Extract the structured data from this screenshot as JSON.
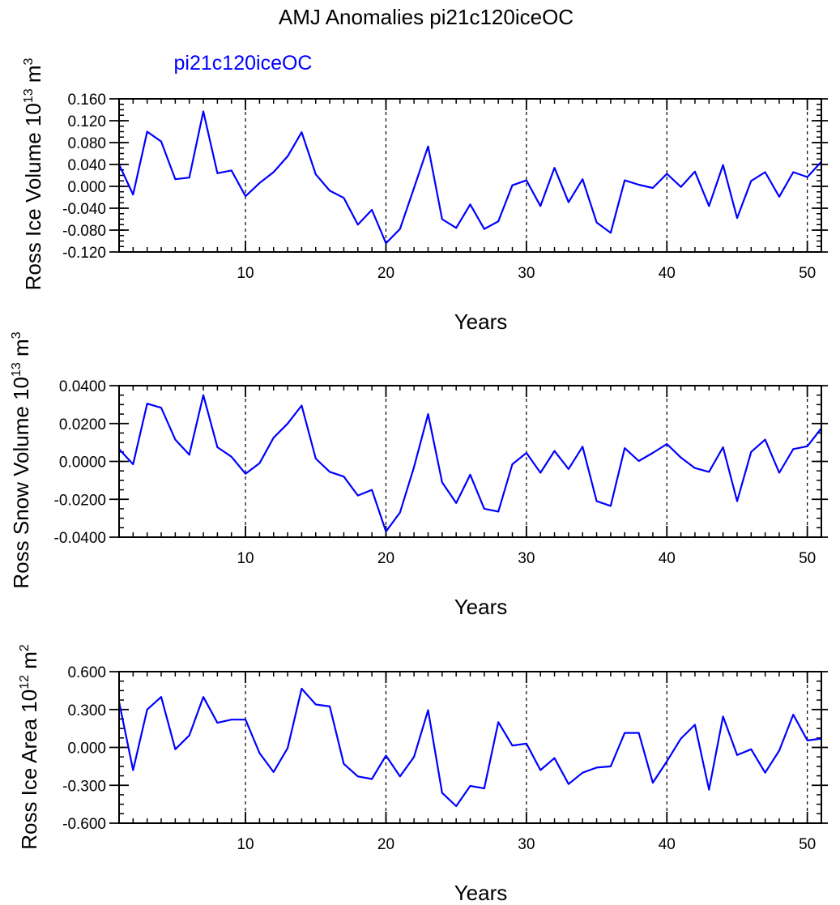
{
  "figure": {
    "title": "AMJ Anomalies pi21c120iceOC",
    "series_label": "pi21c120iceOC",
    "line_color": "#0000ff"
  },
  "chart_data": [
    {
      "type": "line",
      "name": "ross-ice-volume",
      "xlabel": "Years",
      "ylabel": {
        "text": "Ross Ice Volume 10",
        "exp": "13",
        "unit": " m",
        "unit_exp": "3"
      },
      "xlim": [
        1,
        51
      ],
      "ylim": [
        -0.12,
        0.16
      ],
      "xticks": [
        10,
        20,
        30,
        40,
        50
      ],
      "xtick_labels": [
        "10",
        "20",
        "30",
        "40",
        "50"
      ],
      "yticks": [
        -0.12,
        -0.08,
        -0.04,
        0.0,
        0.04,
        0.08,
        0.12,
        0.16
      ],
      "ytick_labels": [
        "-0.120",
        "-0.080",
        "-0.040",
        "0.000",
        "0.040",
        "0.080",
        "0.120",
        "0.160"
      ],
      "yminor_step": 0.01,
      "vlines": [
        10,
        20,
        30,
        40,
        50
      ],
      "x": [
        1,
        2,
        3,
        4,
        5,
        6,
        7,
        8,
        9,
        10,
        11,
        12,
        13,
        14,
        15,
        16,
        17,
        18,
        19,
        20,
        21,
        22,
        23,
        24,
        25,
        26,
        27,
        28,
        29,
        30,
        31,
        32,
        33,
        34,
        35,
        36,
        37,
        38,
        39,
        40,
        41,
        42,
        43,
        44,
        45,
        46,
        47,
        48,
        49,
        50,
        51
      ],
      "values": [
        0.04,
        -0.015,
        0.1,
        0.082,
        0.013,
        0.016,
        0.137,
        0.024,
        0.029,
        -0.018,
        0.006,
        0.026,
        0.055,
        0.099,
        0.022,
        -0.008,
        -0.021,
        -0.07,
        -0.043,
        -0.104,
        -0.078,
        -0.003,
        0.073,
        -0.06,
        -0.076,
        -0.033,
        -0.078,
        -0.064,
        0.002,
        0.011,
        -0.036,
        0.034,
        -0.029,
        0.013,
        -0.066,
        -0.085,
        0.011,
        0.003,
        -0.003,
        0.023,
        -0.001,
        0.027,
        -0.036,
        0.039,
        -0.058,
        0.01,
        0.026,
        -0.019,
        0.026,
        0.017,
        0.045
      ]
    },
    {
      "type": "line",
      "name": "ross-snow-volume",
      "xlabel": "Years",
      "ylabel": {
        "text": "Ross Snow Volume 10",
        "exp": "13",
        "unit": " m",
        "unit_exp": "3"
      },
      "xlim": [
        1,
        51
      ],
      "ylim": [
        -0.04,
        0.04
      ],
      "xticks": [
        10,
        20,
        30,
        40,
        50
      ],
      "xtick_labels": [
        "10",
        "20",
        "30",
        "40",
        "50"
      ],
      "yticks": [
        -0.04,
        -0.02,
        0.0,
        0.02,
        0.04
      ],
      "ytick_labels": [
        "-0.0400",
        "-0.0200",
        "0.0000",
        "0.0200",
        "0.0400"
      ],
      "yminor_step": 0.005,
      "vlines": [
        10,
        20,
        30,
        40,
        50
      ],
      "x": [
        1,
        2,
        3,
        4,
        5,
        6,
        7,
        8,
        9,
        10,
        11,
        12,
        13,
        14,
        15,
        16,
        17,
        18,
        19,
        20,
        21,
        22,
        23,
        24,
        25,
        26,
        27,
        28,
        29,
        30,
        31,
        32,
        33,
        34,
        35,
        36,
        37,
        38,
        39,
        40,
        41,
        42,
        43,
        44,
        45,
        46,
        47,
        48,
        49,
        50,
        51
      ],
      "values": [
        0.0065,
        -0.0015,
        0.0305,
        0.0283,
        0.0115,
        0.0035,
        0.035,
        0.0075,
        0.0025,
        -0.0065,
        -0.001,
        0.0125,
        0.02,
        0.0295,
        0.0015,
        -0.0055,
        -0.008,
        -0.018,
        -0.015,
        -0.037,
        -0.027,
        -0.003,
        0.025,
        -0.011,
        -0.022,
        -0.007,
        -0.025,
        -0.0265,
        -0.0015,
        0.0045,
        -0.006,
        0.0055,
        -0.004,
        0.0078,
        -0.021,
        -0.0235,
        0.007,
        0.0002,
        0.0045,
        0.0092,
        0.002,
        -0.0035,
        -0.0055,
        0.0075,
        -0.021,
        0.005,
        0.0115,
        -0.006,
        0.0065,
        0.008,
        0.0175
      ]
    },
    {
      "type": "line",
      "name": "ross-ice-area",
      "xlabel": "Years",
      "ylabel": {
        "text": "Ross Ice Area 10",
        "exp": "12",
        "unit": " m",
        "unit_exp": "2"
      },
      "xlim": [
        1,
        51
      ],
      "ylim": [
        -0.6,
        0.6
      ],
      "xticks": [
        10,
        20,
        30,
        40,
        50
      ],
      "xtick_labels": [
        "10",
        "20",
        "30",
        "40",
        "50"
      ],
      "yticks": [
        -0.6,
        -0.3,
        0.0,
        0.3,
        0.6
      ],
      "ytick_labels": [
        "-0.600",
        "-0.300",
        "0.000",
        "0.300",
        "0.600"
      ],
      "yminor_step": 0.075,
      "vlines": [
        10,
        20,
        30,
        40,
        50
      ],
      "x": [
        1,
        2,
        3,
        4,
        5,
        6,
        7,
        8,
        9,
        10,
        11,
        12,
        13,
        14,
        15,
        16,
        17,
        18,
        19,
        20,
        21,
        22,
        23,
        24,
        25,
        26,
        27,
        28,
        29,
        30,
        31,
        32,
        33,
        34,
        35,
        36,
        37,
        38,
        39,
        40,
        41,
        42,
        43,
        44,
        45,
        46,
        47,
        48,
        49,
        50,
        51
      ],
      "values": [
        0.36,
        -0.18,
        0.3,
        0.4,
        -0.015,
        0.095,
        0.4,
        0.195,
        0.22,
        0.22,
        -0.045,
        -0.195,
        -0.005,
        0.465,
        0.34,
        0.325,
        -0.13,
        -0.23,
        -0.25,
        -0.065,
        -0.23,
        -0.075,
        0.295,
        -0.36,
        -0.465,
        -0.305,
        -0.325,
        0.2,
        0.015,
        0.03,
        -0.18,
        -0.085,
        -0.29,
        -0.2,
        -0.16,
        -0.15,
        0.115,
        0.115,
        -0.28,
        -0.11,
        0.07,
        0.18,
        -0.335,
        0.245,
        -0.06,
        -0.015,
        -0.2,
        -0.025,
        0.26,
        0.055,
        0.07
      ]
    }
  ]
}
